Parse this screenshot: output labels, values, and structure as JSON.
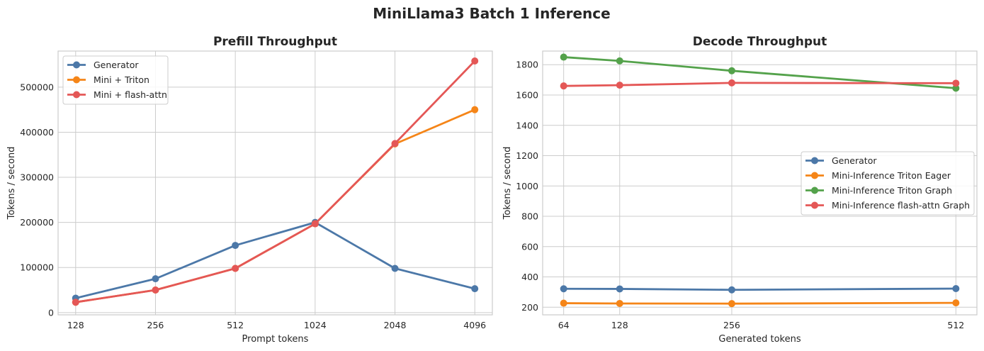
{
  "figure": {
    "title": "MiniLlama3 Batch 1 Inference"
  },
  "chart_data": [
    {
      "type": "line",
      "title": "Prefill Throughput",
      "xlabel": "Prompt tokens",
      "ylabel": "Tokens / second",
      "x_scale": "categorical",
      "categories": [
        "128",
        "256",
        "512",
        "1024",
        "2048",
        "4096"
      ],
      "x": [
        128,
        256,
        512,
        1024,
        2048,
        4096
      ],
      "ylim": [
        -5000,
        580000
      ],
      "yticks": [
        0,
        100000,
        200000,
        300000,
        400000,
        500000
      ],
      "grid": true,
      "legend": "upper-left",
      "series": [
        {
          "name": "Generator",
          "color": "#4c78a8",
          "values": [
            32000,
            75000,
            149000,
            200000,
            98000,
            53000
          ]
        },
        {
          "name": "Mini + Triton",
          "color": "#f58518",
          "values": [
            23000,
            50000,
            98000,
            197000,
            374000,
            450000
          ]
        },
        {
          "name": "Mini + flash-attn",
          "color": "#e45756",
          "values": [
            23000,
            50000,
            98000,
            197000,
            375000,
            558000
          ]
        }
      ]
    },
    {
      "type": "line",
      "title": "Decode Throughput",
      "xlabel": "Generated tokens",
      "ylabel": "Tokens / second",
      "x_scale": "linear",
      "x": [
        64,
        128,
        256,
        512
      ],
      "xticks": [
        64,
        128,
        256,
        512
      ],
      "xlim": [
        40,
        536
      ],
      "ylim": [
        150,
        1890
      ],
      "yticks": [
        200,
        400,
        600,
        800,
        1000,
        1200,
        1400,
        1600,
        1800
      ],
      "grid": true,
      "legend": "center-right",
      "series": [
        {
          "name": "Generator",
          "color": "#4c78a8",
          "values": [
            322,
            321,
            315,
            323
          ]
        },
        {
          "name": "Mini-Inference Triton Eager",
          "color": "#f58518",
          "values": [
            227,
            225,
            224,
            229
          ]
        },
        {
          "name": "Mini-Inference Triton Graph",
          "color": "#54a24b",
          "values": [
            1850,
            1825,
            1760,
            1645
          ]
        },
        {
          "name": "Mini-Inference flash-attn Graph",
          "color": "#e45756",
          "values": [
            1660,
            1665,
            1680,
            1678
          ]
        }
      ]
    }
  ]
}
